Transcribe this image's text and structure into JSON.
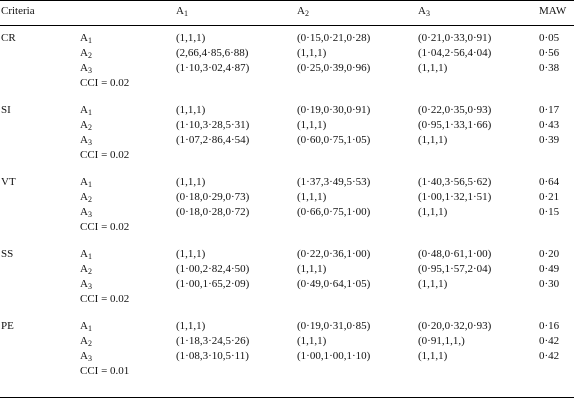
{
  "table": {
    "headers": {
      "criteria": "Criteria",
      "a1": {
        "base": "A",
        "sub": "1"
      },
      "a2": {
        "base": "A",
        "sub": "2"
      },
      "a3": {
        "base": "A",
        "sub": "3"
      },
      "maw": "MAW"
    },
    "groups": [
      {
        "criterion": "CR",
        "rows": [
          {
            "alt": "A",
            "alt_sub": "1",
            "a1": "(1,1,1)",
            "a2": "(0·15,0·21,0·28)",
            "a3": "(0·21,0·33,0·91)",
            "maw": "0·05"
          },
          {
            "alt": "A",
            "alt_sub": "2",
            "a1": "(2,66,4·85,6·88)",
            "a2": "(1,1,1)",
            "a3": "(1·04,2·56,4·04)",
            "maw": "0·56"
          },
          {
            "alt": "A",
            "alt_sub": "3",
            "a1": "(1·10,3·02,4·87)",
            "a2": "(0·25,0·39,0·96)",
            "a3": "(1,1,1)",
            "maw": "0·38"
          }
        ],
        "cci": "CCI = 0.02"
      },
      {
        "criterion": "SI",
        "rows": [
          {
            "alt": "A",
            "alt_sub": "1",
            "a1": "(1,1,1)",
            "a2": "(0·19,0·30,0·91)",
            "a3": "(0·22,0·35,0·93)",
            "maw": "0·17"
          },
          {
            "alt": "A",
            "alt_sub": "2",
            "a1": "(1·10,3·28,5·31)",
            "a2": "(1,1,1)",
            "a3": "(0·95,1·33,1·66)",
            "maw": "0·43"
          },
          {
            "alt": "A",
            "alt_sub": "3",
            "a1": "(1·07,2·86,4·54)",
            "a2": "(0·60,0·75,1·05)",
            "a3": "(1,1,1)",
            "maw": "0·39"
          }
        ],
        "cci": "CCI = 0.02"
      },
      {
        "criterion": "VT",
        "rows": [
          {
            "alt": "A",
            "alt_sub": "1",
            "a1": "(1,1,1)",
            "a2": "(1·37,3·49,5·53)",
            "a3": "(1·40,3·56,5·62)",
            "maw": "0·64"
          },
          {
            "alt": "A",
            "alt_sub": "2",
            "a1": "(0·18,0·29,0·73)",
            "a2": "(1,1,1)",
            "a3": "(1·00,1·32,1·51)",
            "maw": "0·21"
          },
          {
            "alt": "A",
            "alt_sub": "3",
            "a1": "(0·18,0·28,0·72)",
            "a2": "(0·66,0·75,1·00)",
            "a3": "(1,1,1)",
            "maw": "0·15"
          }
        ],
        "cci": "CCI = 0.02"
      },
      {
        "criterion": "SS",
        "rows": [
          {
            "alt": "A",
            "alt_sub": "1",
            "a1": "(1,1,1)",
            "a2": "(0·22,0·36,1·00)",
            "a3": "(0·48,0·61,1·00)",
            "maw": "0·20"
          },
          {
            "alt": "A",
            "alt_sub": "2",
            "a1": "(1·00,2·82,4·50)",
            "a2": "(1,1,1)",
            "a3": "(0·95,1·57,2·04)",
            "maw": "0·49"
          },
          {
            "alt": "A",
            "alt_sub": "3",
            "a1": "(1·00,1·65,2·09)",
            "a2": "(0·49,0·64,1·05)",
            "a3": "(1,1,1)",
            "maw": "0·30"
          }
        ],
        "cci": "CCI = 0.02"
      },
      {
        "criterion": "PE",
        "rows": [
          {
            "alt": "A",
            "alt_sub": "1",
            "a1": "(1,1,1)",
            "a2": "(0·19,0·31,0·85)",
            "a3": "(0·20,0·32,0·93)",
            "maw": "0·16"
          },
          {
            "alt": "A",
            "alt_sub": "2",
            "a1": "(1·18,3·24,5·26)",
            "a2": "(1,1,1)",
            "a3": "(0·91,1,1,)",
            "maw": "0·42"
          },
          {
            "alt": "A",
            "alt_sub": "3",
            "a1": "(1·08,3·10,5·11)",
            "a2": "(1·00,1·00,1·10)",
            "a3": "(1,1,1)",
            "maw": "0·42"
          }
        ],
        "cci": "CCI = 0.01"
      }
    ]
  }
}
